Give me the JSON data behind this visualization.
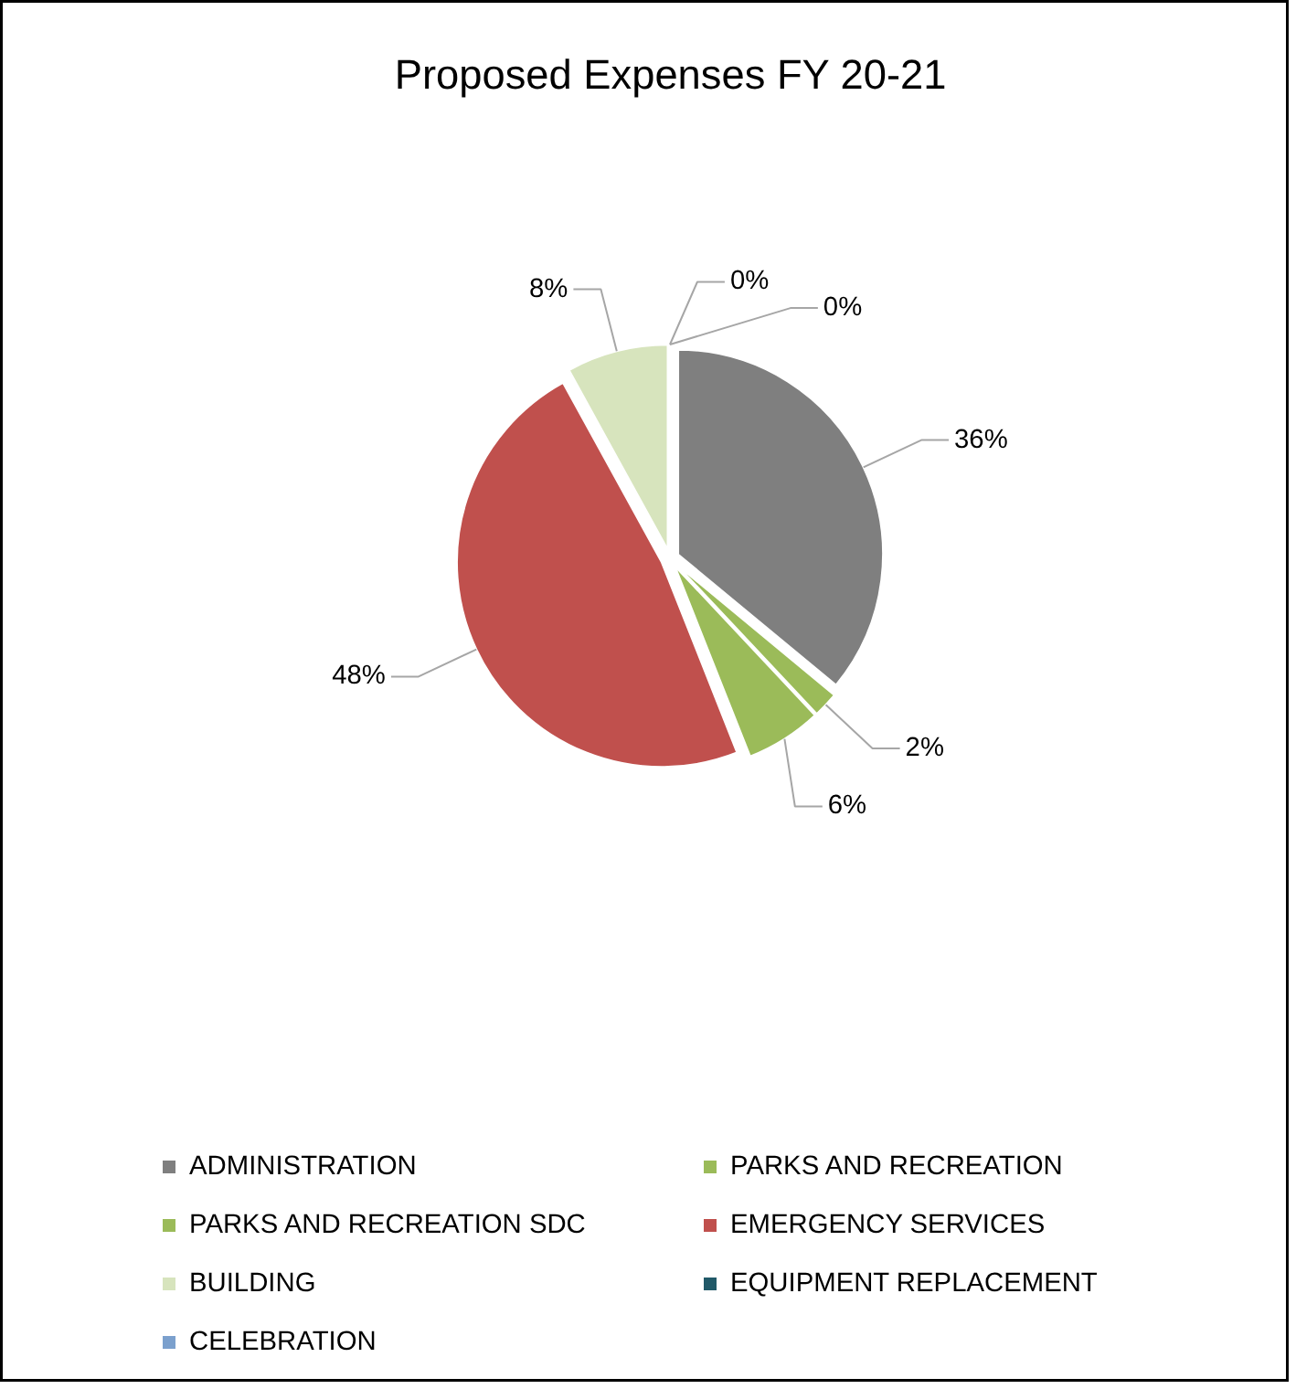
{
  "chart_data": {
    "type": "pie",
    "title": "Proposed Expenses FY 20-21",
    "categories": [
      "ADMINISTRATION",
      "PARKS AND RECREATION",
      "PARKS AND RECREATION SDC",
      "EMERGENCY SERVICES",
      "BUILDING",
      "EQUIPMENT REPLACEMENT",
      "CELEBRATION"
    ],
    "values": [
      36,
      2,
      6,
      48,
      8,
      0,
      0
    ],
    "colors": [
      "#7f7f7f",
      "#9bbb59",
      "#9bbb59",
      "#c0504d",
      "#d7e4bd",
      "#215968",
      "#7ba0cd"
    ],
    "value_labels": [
      "36%",
      "2%",
      "6%",
      "48%",
      "8%",
      "0%",
      "0%"
    ],
    "legend": "bottom"
  }
}
